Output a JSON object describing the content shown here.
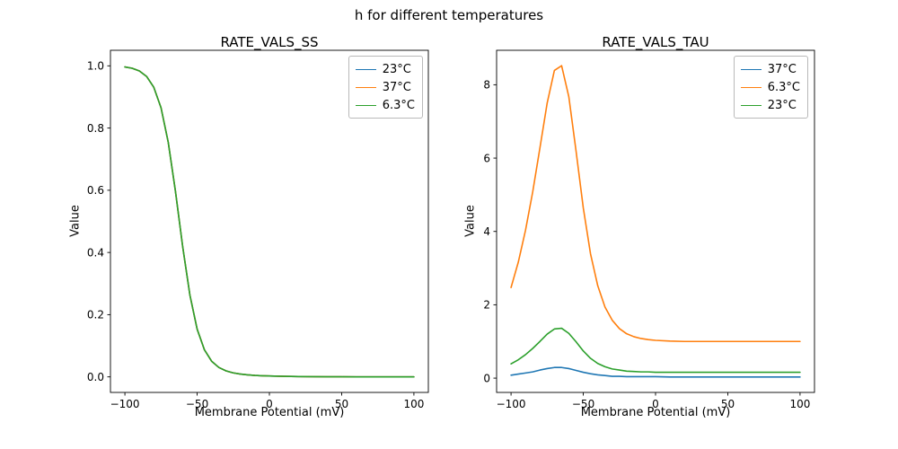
{
  "figure": {
    "title": "h for different temperatures"
  },
  "colors": {
    "blue": "#1f77b4",
    "orange": "#ff7f0e",
    "green": "#2ca02c"
  },
  "chart_data": [
    {
      "type": "line",
      "title": "RATE_VALS_SS",
      "xlabel": "Membrane Potential (mV)",
      "ylabel": "Value",
      "xlim": [
        -110,
        110
      ],
      "ylim": [
        -0.05,
        1.05
      ],
      "xticks": [
        -100,
        -50,
        0,
        50,
        100
      ],
      "xtick_labels": [
        "−100",
        "−50",
        "0",
        "50",
        "100"
      ],
      "yticks": [
        0.0,
        0.2,
        0.4,
        0.6,
        0.8,
        1.0
      ],
      "ytick_labels": [
        "0.0",
        "0.2",
        "0.4",
        "0.6",
        "0.8",
        "1.0"
      ],
      "legend_position": "upper right",
      "grid": false,
      "x": [
        -100,
        -95,
        -90,
        -85,
        -80,
        -75,
        -70,
        -65,
        -60,
        -55,
        -50,
        -45,
        -40,
        -35,
        -30,
        -25,
        -20,
        -15,
        -10,
        -5,
        0,
        10,
        20,
        30,
        40,
        50,
        60,
        70,
        80,
        90,
        100
      ],
      "series": [
        {
          "name": "23°C",
          "color": "#1f77b4",
          "values": [
            0.9963,
            0.9922,
            0.9836,
            0.966,
            0.931,
            0.8652,
            0.7541,
            0.5961,
            0.4182,
            0.2626,
            0.1534,
            0.0874,
            0.0504,
            0.0303,
            0.0192,
            0.0128,
            0.0089,
            0.0065,
            0.0048,
            0.0036,
            0.0028,
            0.0017,
            0.001,
            0.0006,
            0.0004,
            0.0002,
            0.0001,
            0.0001,
            0.0001,
            0.0,
            0.0
          ]
        },
        {
          "name": "37°C",
          "color": "#ff7f0e",
          "values": [
            0.9963,
            0.9922,
            0.9836,
            0.966,
            0.931,
            0.8652,
            0.7541,
            0.5961,
            0.4182,
            0.2626,
            0.1534,
            0.0874,
            0.0504,
            0.0303,
            0.0192,
            0.0128,
            0.0089,
            0.0065,
            0.0048,
            0.0036,
            0.0028,
            0.0017,
            0.001,
            0.0006,
            0.0004,
            0.0002,
            0.0001,
            0.0001,
            0.0001,
            0.0,
            0.0
          ]
        },
        {
          "name": "6.3°C",
          "color": "#2ca02c",
          "values": [
            0.9963,
            0.9922,
            0.9836,
            0.966,
            0.931,
            0.8652,
            0.7541,
            0.5961,
            0.4182,
            0.2626,
            0.1534,
            0.0874,
            0.0504,
            0.0303,
            0.0192,
            0.0128,
            0.0089,
            0.0065,
            0.0048,
            0.0036,
            0.0028,
            0.0017,
            0.001,
            0.0006,
            0.0004,
            0.0002,
            0.0001,
            0.0001,
            0.0001,
            0.0,
            0.0
          ]
        }
      ]
    },
    {
      "type": "line",
      "title": "RATE_VALS_TAU",
      "xlabel": "Membrane Potential (mV)",
      "ylabel": "Value",
      "xlim": [
        -110,
        110
      ],
      "ylim": [
        -0.39,
        8.94
      ],
      "xticks": [
        -100,
        -50,
        0,
        50,
        100
      ],
      "xtick_labels": [
        "−100",
        "−50",
        "0",
        "50",
        "100"
      ],
      "yticks": [
        0,
        2,
        4,
        6,
        8
      ],
      "ytick_labels": [
        "0",
        "2",
        "4",
        "6",
        "8"
      ],
      "legend_position": "upper right",
      "grid": false,
      "x": [
        -100,
        -95,
        -90,
        -85,
        -80,
        -75,
        -70,
        -65,
        -60,
        -55,
        -50,
        -45,
        -40,
        -35,
        -30,
        -25,
        -20,
        -15,
        -10,
        -5,
        0,
        10,
        20,
        30,
        40,
        50,
        60,
        70,
        80,
        90,
        100
      ],
      "series": [
        {
          "name": "37°C",
          "color": "#1f77b4",
          "values": [
            0.08,
            0.11,
            0.14,
            0.17,
            0.22,
            0.26,
            0.29,
            0.29,
            0.26,
            0.21,
            0.16,
            0.12,
            0.09,
            0.07,
            0.05,
            0.05,
            0.04,
            0.04,
            0.04,
            0.04,
            0.04,
            0.03,
            0.03,
            0.03,
            0.03,
            0.03,
            0.03,
            0.03,
            0.03,
            0.03,
            0.03
          ]
        },
        {
          "name": "6.3°C",
          "color": "#ff7f0e",
          "values": [
            2.47,
            3.16,
            4.03,
            5.08,
            6.28,
            7.5,
            8.39,
            8.52,
            7.67,
            6.19,
            4.64,
            3.39,
            2.52,
            1.94,
            1.58,
            1.35,
            1.21,
            1.13,
            1.08,
            1.05,
            1.03,
            1.01,
            1.0,
            1.0,
            1.0,
            1.0,
            1.0,
            1.0,
            1.0,
            1.0,
            1.0
          ]
        },
        {
          "name": "23°C",
          "color": "#2ca02c",
          "values": [
            0.39,
            0.5,
            0.64,
            0.81,
            1.0,
            1.2,
            1.34,
            1.36,
            1.22,
            0.99,
            0.74,
            0.54,
            0.4,
            0.31,
            0.25,
            0.22,
            0.19,
            0.18,
            0.17,
            0.17,
            0.16,
            0.16,
            0.16,
            0.16,
            0.16,
            0.16,
            0.16,
            0.16,
            0.16,
            0.16,
            0.16
          ]
        }
      ]
    }
  ]
}
